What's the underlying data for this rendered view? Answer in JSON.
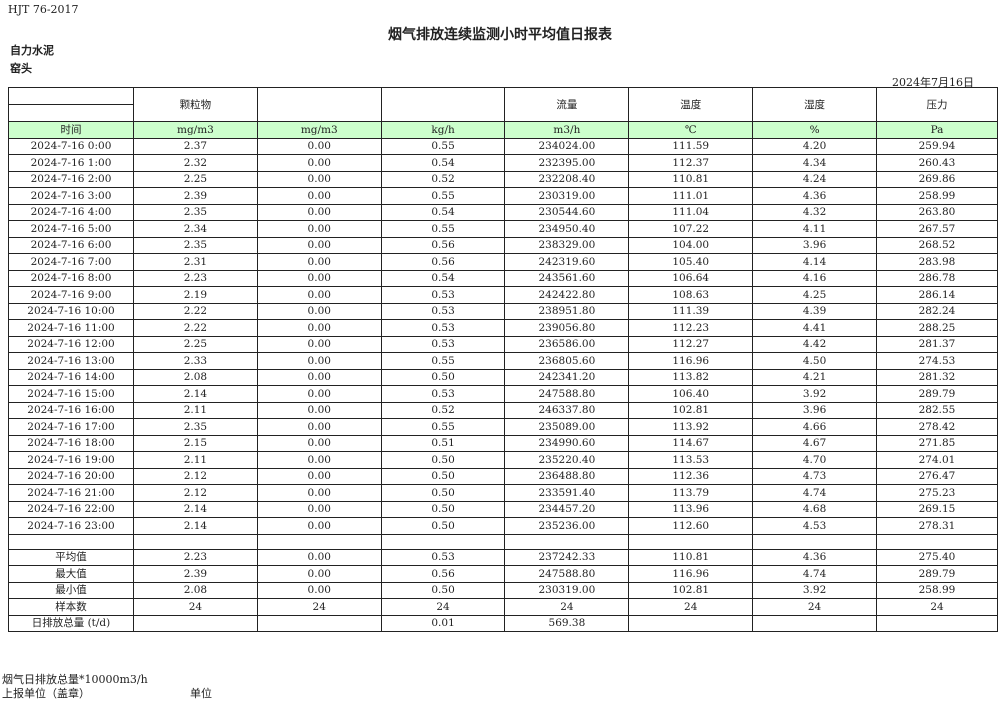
{
  "standard": "HJT  76-2017",
  "title": "烟气排放连续监测小时平均值日报表",
  "company": "自力水泥",
  "kiln": "窑头",
  "date": "2024年7月16日",
  "header": {
    "params": [
      "",
      "颗粒物",
      "",
      "",
      "流量",
      "温度",
      "湿度",
      "压力"
    ],
    "units": [
      "时间",
      "mg/m3",
      "mg/m3",
      "kg/h",
      "m3/h",
      "℃",
      "%",
      "Pa"
    ]
  },
  "rows": [
    [
      "2024-7-16 0:00",
      "2.37",
      "0.00",
      "0.55",
      "234024.00",
      "111.59",
      "4.20",
      "259.94"
    ],
    [
      "2024-7-16 1:00",
      "2.32",
      "0.00",
      "0.54",
      "232395.00",
      "112.37",
      "4.34",
      "260.43"
    ],
    [
      "2024-7-16 2:00",
      "2.25",
      "0.00",
      "0.52",
      "232208.40",
      "110.81",
      "4.24",
      "269.86"
    ],
    [
      "2024-7-16 3:00",
      "2.39",
      "0.00",
      "0.55",
      "230319.00",
      "111.01",
      "4.36",
      "258.99"
    ],
    [
      "2024-7-16 4:00",
      "2.35",
      "0.00",
      "0.54",
      "230544.60",
      "111.04",
      "4.32",
      "263.80"
    ],
    [
      "2024-7-16 5:00",
      "2.34",
      "0.00",
      "0.55",
      "234950.40",
      "107.22",
      "4.11",
      "267.57"
    ],
    [
      "2024-7-16 6:00",
      "2.35",
      "0.00",
      "0.56",
      "238329.00",
      "104.00",
      "3.96",
      "268.52"
    ],
    [
      "2024-7-16 7:00",
      "2.31",
      "0.00",
      "0.56",
      "242319.60",
      "105.40",
      "4.14",
      "283.98"
    ],
    [
      "2024-7-16 8:00",
      "2.23",
      "0.00",
      "0.54",
      "243561.60",
      "106.64",
      "4.16",
      "286.78"
    ],
    [
      "2024-7-16 9:00",
      "2.19",
      "0.00",
      "0.53",
      "242422.80",
      "108.63",
      "4.25",
      "286.14"
    ],
    [
      "2024-7-16 10:00",
      "2.22",
      "0.00",
      "0.53",
      "238951.80",
      "111.39",
      "4.39",
      "282.24"
    ],
    [
      "2024-7-16 11:00",
      "2.22",
      "0.00",
      "0.53",
      "239056.80",
      "112.23",
      "4.41",
      "288.25"
    ],
    [
      "2024-7-16 12:00",
      "2.25",
      "0.00",
      "0.53",
      "236586.00",
      "112.27",
      "4.42",
      "281.37"
    ],
    [
      "2024-7-16 13:00",
      "2.33",
      "0.00",
      "0.55",
      "236805.60",
      "116.96",
      "4.50",
      "274.53"
    ],
    [
      "2024-7-16 14:00",
      "2.08",
      "0.00",
      "0.50",
      "242341.20",
      "113.82",
      "4.21",
      "281.32"
    ],
    [
      "2024-7-16 15:00",
      "2.14",
      "0.00",
      "0.53",
      "247588.80",
      "106.40",
      "3.92",
      "289.79"
    ],
    [
      "2024-7-16 16:00",
      "2.11",
      "0.00",
      "0.52",
      "246337.80",
      "102.81",
      "3.96",
      "282.55"
    ],
    [
      "2024-7-16 17:00",
      "2.35",
      "0.00",
      "0.55",
      "235089.00",
      "113.92",
      "4.66",
      "278.42"
    ],
    [
      "2024-7-16 18:00",
      "2.15",
      "0.00",
      "0.51",
      "234990.60",
      "114.67",
      "4.67",
      "271.85"
    ],
    [
      "2024-7-16 19:00",
      "2.11",
      "0.00",
      "0.50",
      "235220.40",
      "113.53",
      "4.70",
      "274.01"
    ],
    [
      "2024-7-16 20:00",
      "2.12",
      "0.00",
      "0.50",
      "236488.80",
      "112.36",
      "4.73",
      "276.47"
    ],
    [
      "2024-7-16 21:00",
      "2.12",
      "0.00",
      "0.50",
      "233591.40",
      "113.79",
      "4.74",
      "275.23"
    ],
    [
      "2024-7-16 22:00",
      "2.14",
      "0.00",
      "0.50",
      "234457.20",
      "113.96",
      "4.68",
      "269.15"
    ],
    [
      "2024-7-16 23:00",
      "2.14",
      "0.00",
      "0.50",
      "235236.00",
      "112.60",
      "4.53",
      "278.31"
    ]
  ],
  "summary": [
    [
      "平均值",
      "2.23",
      "0.00",
      "0.53",
      "237242.33",
      "110.81",
      "4.36",
      "275.40"
    ],
    [
      "最大值",
      "2.39",
      "0.00",
      "0.56",
      "247588.80",
      "116.96",
      "4.74",
      "289.79"
    ],
    [
      "最小值",
      "2.08",
      "0.00",
      "0.50",
      "230319.00",
      "102.81",
      "3.92",
      "258.99"
    ],
    [
      "样本数",
      "24",
      "24",
      "24",
      "24",
      "24",
      "24",
      "24"
    ],
    [
      "日排放总量 (t/d)",
      "",
      "",
      "0.01",
      "569.38",
      "",
      "",
      ""
    ]
  ],
  "footer": {
    "note": "烟气日排放总量*10000m3/h",
    "reporter_label": "上报单位（盖章）",
    "unit_label": "单位"
  },
  "colors": {
    "unit_row_bg": "#ccffcc",
    "border": "#222222"
  }
}
